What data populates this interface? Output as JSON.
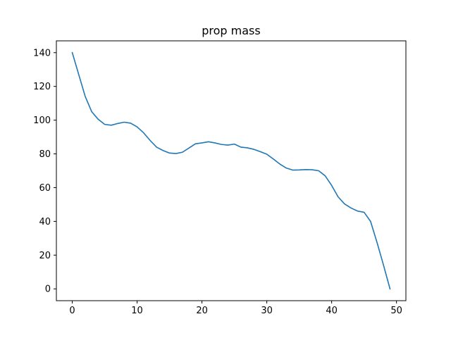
{
  "chart_data": {
    "type": "line",
    "title": "prop mass",
    "xlabel": "",
    "ylabel": "",
    "xlim": [
      -2.45,
      51.45
    ],
    "ylim": [
      -7.0,
      147.0
    ],
    "x_ticks": [
      0,
      10,
      20,
      30,
      40,
      50
    ],
    "y_ticks": [
      0,
      20,
      40,
      60,
      80,
      100,
      120,
      140
    ],
    "grid": false,
    "legend": "none",
    "series": [
      {
        "color": "#1f77b4",
        "x": [
          0,
          1,
          2,
          3,
          4,
          5,
          6,
          7,
          8,
          9,
          10,
          11,
          12,
          13,
          14,
          15,
          16,
          17,
          18,
          19,
          20,
          21,
          22,
          23,
          24,
          25,
          26,
          27,
          28,
          29,
          30,
          31,
          32,
          33,
          34,
          35,
          36,
          37,
          38,
          39,
          40,
          41,
          42,
          43,
          44,
          45,
          46,
          47,
          48,
          49
        ],
        "values": [
          140,
          127,
          114,
          105,
          100.5,
          97.5,
          97,
          98,
          98.8,
          98.2,
          96,
          92.5,
          88,
          84,
          82,
          80.5,
          80.2,
          81,
          83.5,
          86,
          86.5,
          87.2,
          86.5,
          85.6,
          85.2,
          85.8,
          84,
          83.6,
          82.7,
          81.3,
          79.8,
          77,
          74,
          71.6,
          70.4,
          70.5,
          70.7,
          70.6,
          70,
          67,
          61.3,
          54.5,
          50.3,
          47.9,
          46.1,
          45.4,
          40,
          27.5,
          14,
          0
        ]
      }
    ]
  }
}
